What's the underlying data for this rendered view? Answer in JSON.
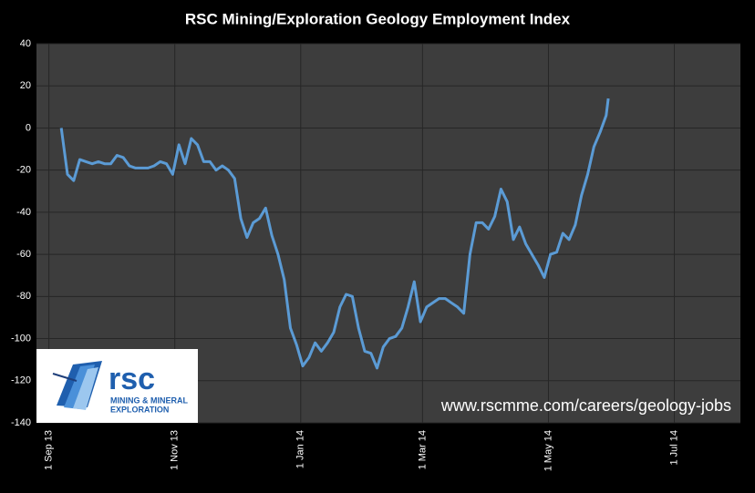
{
  "chart_data": {
    "type": "line",
    "title": "RSC Mining/Exploration Geology Employment Index",
    "x": [
      "2013-09-07",
      "2013-09-10",
      "2013-09-13",
      "2013-09-16",
      "2013-09-19",
      "2013-09-22",
      "2013-09-25",
      "2013-09-28",
      "2013-10-01",
      "2013-10-04",
      "2013-10-07",
      "2013-10-10",
      "2013-10-13",
      "2013-10-16",
      "2013-10-19",
      "2013-10-22",
      "2013-10-25",
      "2013-10-28",
      "2013-10-31",
      "2013-11-03",
      "2013-11-06",
      "2013-11-09",
      "2013-11-12",
      "2013-11-15",
      "2013-11-18",
      "2013-11-21",
      "2013-11-24",
      "2013-11-27",
      "2013-11-30",
      "2013-12-03",
      "2013-12-06",
      "2013-12-09",
      "2013-12-12",
      "2013-12-15",
      "2013-12-18",
      "2013-12-21",
      "2013-12-24",
      "2013-12-27",
      "2013-12-30",
      "2014-01-02",
      "2014-01-05",
      "2014-01-08",
      "2014-01-11",
      "2014-01-14",
      "2014-01-17",
      "2014-01-20",
      "2014-01-23",
      "2014-01-26",
      "2014-01-29",
      "2014-02-01",
      "2014-02-04",
      "2014-02-07",
      "2014-02-10",
      "2014-02-13",
      "2014-02-16",
      "2014-02-19",
      "2014-02-22",
      "2014-02-25",
      "2014-02-28",
      "2014-03-03",
      "2014-03-06",
      "2014-03-09",
      "2014-03-12",
      "2014-03-15",
      "2014-03-18",
      "2014-03-21",
      "2014-03-24",
      "2014-03-27",
      "2014-03-30",
      "2014-04-02",
      "2014-04-05",
      "2014-04-08",
      "2014-04-11",
      "2014-04-14",
      "2014-04-17",
      "2014-04-20",
      "2014-04-23",
      "2014-04-26",
      "2014-04-29",
      "2014-05-02",
      "2014-05-05",
      "2014-05-08",
      "2014-05-11",
      "2014-05-14",
      "2014-05-17",
      "2014-05-20",
      "2014-05-23",
      "2014-05-26",
      "2014-05-29",
      "2014-05-30"
    ],
    "series": [
      {
        "name": "RSC Mining/Exploration Geology Employment Index",
        "color": "#5b9bd5",
        "values": [
          0,
          -22,
          -25,
          -15,
          -16,
          -17,
          -16,
          -17,
          -17,
          -13,
          -14,
          -18,
          -19,
          -19,
          -19,
          -18,
          -16,
          -17,
          -22,
          -8,
          -17,
          -5,
          -8,
          -16,
          -16,
          -20,
          -18,
          -20,
          -24,
          -43,
          -52,
          -45,
          -43,
          -38,
          -51,
          -60,
          -72,
          -95,
          -103,
          -113,
          -109,
          -102,
          -106,
          -102,
          -97,
          -85,
          -79,
          -80,
          -95,
          -106,
          -107,
          -114,
          -104,
          -100,
          -99,
          -95,
          -85,
          -73,
          -92,
          -85,
          -83,
          -81,
          -81,
          -83,
          -85,
          -88,
          -60,
          -45,
          -45,
          -48,
          -42,
          -29,
          -35,
          -53,
          -47,
          -55,
          -60,
          -65,
          -71,
          -60,
          -59,
          -50,
          -53,
          -46,
          -32,
          -22,
          -9,
          -2,
          6,
          14
        ]
      }
    ],
    "xlim": [
      "2013-08-26",
      "2014-08-02"
    ],
    "xticks": [
      {
        "value": "2013-09-01",
        "label": "1 Sep 13"
      },
      {
        "value": "2013-11-01",
        "label": "1 Nov 13"
      },
      {
        "value": "2014-01-01",
        "label": "1 Jan 14"
      },
      {
        "value": "2014-03-01",
        "label": "1 Mar 14"
      },
      {
        "value": "2014-05-01",
        "label": "1 May 14"
      },
      {
        "value": "2014-07-01",
        "label": "1 Jul 14"
      }
    ],
    "ylim": [
      -140,
      40
    ],
    "yticks": [
      -140,
      -120,
      -100,
      -80,
      -60,
      -40,
      -20,
      0,
      20,
      40
    ],
    "grid": true,
    "annotations": {
      "logo": "rsc",
      "logo_line1": "MINING & MINERAL",
      "logo_line2": "EXPLORATION",
      "url": "www.rscmme.com/careers/geology-jobs"
    }
  }
}
